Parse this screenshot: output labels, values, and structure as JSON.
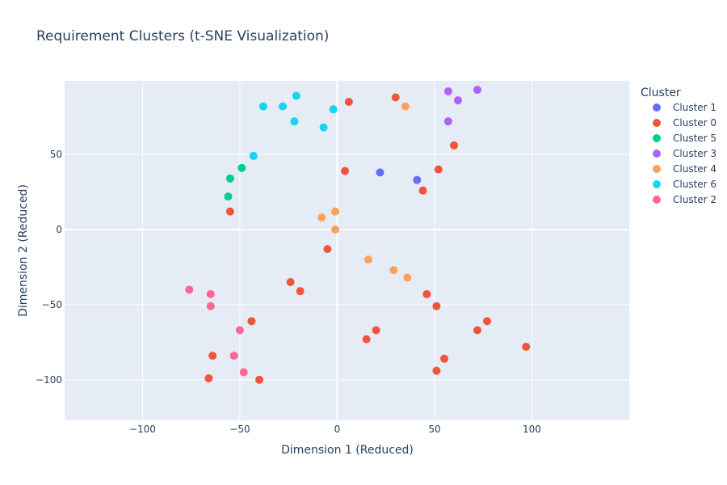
{
  "chart_data": {
    "type": "scatter",
    "title": "Requirement Clusters (t-SNE Visualization)",
    "xlabel": "Dimension 1 (Reduced)",
    "ylabel": "Dimension 2 (Reduced)",
    "xlim": [
      -140,
      150
    ],
    "ylim": [
      -127,
      99
    ],
    "xticks": [
      -100,
      -50,
      0,
      50,
      100
    ],
    "yticks": [
      -100,
      -50,
      0,
      50
    ],
    "xtick_labels": [
      "−100",
      "−50",
      "0",
      "50",
      "100"
    ],
    "ytick_labels": [
      "−100",
      "−50",
      "0",
      "50"
    ],
    "grid": true,
    "legend_title": "Cluster",
    "legend_position": "right",
    "series": [
      {
        "name": "Cluster 1",
        "color": "#636efa",
        "x": [
          22,
          41
        ],
        "y": [
          38,
          33
        ]
      },
      {
        "name": "Cluster 0",
        "color": "#ef553b",
        "x": [
          6,
          30,
          60,
          4,
          52,
          44,
          -55,
          -5,
          -24,
          -19,
          46,
          51,
          -44,
          77,
          72,
          20,
          15,
          97,
          55,
          51,
          -64,
          -66,
          -40
        ],
        "y": [
          85,
          88,
          56,
          39,
          40,
          26,
          12,
          -13,
          -35,
          -41,
          -43,
          -51,
          -61,
          -61,
          -67,
          -67,
          -73,
          -78,
          -86,
          -94,
          -84,
          -99,
          -100
        ]
      },
      {
        "name": "Cluster 5",
        "color": "#00cc96",
        "x": [
          -49,
          -55,
          -56
        ],
        "y": [
          41,
          34,
          22
        ]
      },
      {
        "name": "Cluster 3",
        "color": "#ab63fa",
        "x": [
          57,
          72,
          62,
          57
        ],
        "y": [
          92,
          93,
          86,
          72
        ]
      },
      {
        "name": "Cluster 4",
        "color": "#ffa15a",
        "x": [
          35,
          -1,
          -8,
          -1,
          16,
          29,
          36
        ],
        "y": [
          82,
          12,
          8,
          0,
          -20,
          -27,
          -32
        ]
      },
      {
        "name": "Cluster 6",
        "color": "#19d3f3",
        "x": [
          -21,
          -38,
          -28,
          -22,
          -2,
          -7,
          -43
        ],
        "y": [
          89,
          82,
          82,
          72,
          80,
          68,
          49
        ]
      },
      {
        "name": "Cluster 2",
        "color": "#ff6692",
        "x": [
          -76,
          -65,
          -65,
          -50,
          -53,
          -48
        ],
        "y": [
          -40,
          -43,
          -51,
          -67,
          -84,
          -95
        ]
      }
    ]
  }
}
